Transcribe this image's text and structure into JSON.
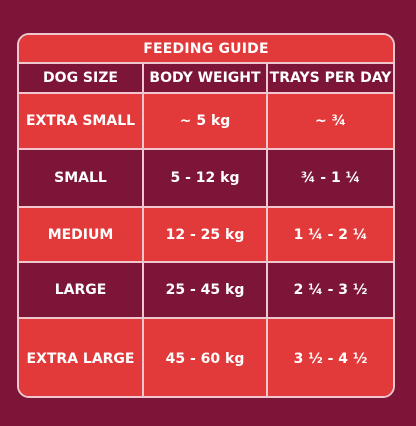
{
  "title": "FEEDING GUIDE",
  "headers": {
    "size": "DOG SIZE",
    "weight": "BODY WEIGHT",
    "trays": "TRAYS PER DAY"
  },
  "rows": [
    {
      "size": "EXTRA SMALL",
      "weight": "~ 5 kg",
      "trays": "~ ¾"
    },
    {
      "size": "SMALL",
      "weight": "5 - 12 kg",
      "trays": "¾ - 1 ¼"
    },
    {
      "size": "MEDIUM",
      "weight": "12 - 25 kg",
      "trays": "1 ¼ - 2 ¼"
    },
    {
      "size": "LARGE",
      "weight": "25 - 45 kg",
      "trays": "2 ¼ - 3 ½"
    },
    {
      "size": "EXTRA LARGE",
      "weight": "45 - 60 kg",
      "trays": "3 ½ - 4 ½"
    }
  ],
  "colors": {
    "background": "#7d1538",
    "accent": "#e23a3a",
    "border": "#f0c6cf"
  }
}
